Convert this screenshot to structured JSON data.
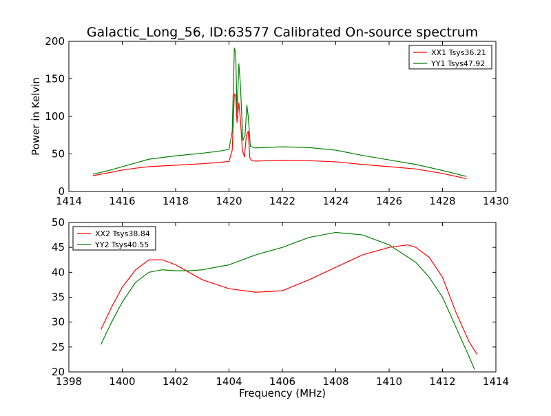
{
  "figure": {
    "title": "Galactic_Long_56, ID:63577 Calibrated On-source spectrum"
  },
  "chart_data": [
    {
      "type": "line",
      "xlabel": "",
      "ylabel": "Power in Kelvin",
      "xlim": [
        1414,
        1430
      ],
      "ylim": [
        0,
        200
      ],
      "xticks": [
        1414,
        1416,
        1418,
        1420,
        1422,
        1424,
        1426,
        1428,
        1430
      ],
      "yticks": [
        0,
        50,
        100,
        150,
        200
      ],
      "legend": "top-right",
      "series": [
        {
          "name": "XX1 Tsys36.21",
          "color": "#ff0000",
          "points": [
            [
              1414.9,
              21
            ],
            [
              1415.5,
              25
            ],
            [
              1416,
              28.5
            ],
            [
              1416.5,
              31
            ],
            [
              1417,
              33
            ],
            [
              1418,
              35
            ],
            [
              1419,
              37
            ],
            [
              1419.6,
              38.5
            ],
            [
              1420.0,
              40
            ],
            [
              1420.12,
              55
            ],
            [
              1420.2,
              130
            ],
            [
              1420.25,
              128
            ],
            [
              1420.3,
              92
            ],
            [
              1420.37,
              118
            ],
            [
              1420.43,
              95
            ],
            [
              1420.5,
              55
            ],
            [
              1420.58,
              46
            ],
            [
              1420.65,
              75
            ],
            [
              1420.72,
              80
            ],
            [
              1420.78,
              45
            ],
            [
              1420.85,
              41
            ],
            [
              1421,
              40.5
            ],
            [
              1422,
              41.5
            ],
            [
              1423,
              41
            ],
            [
              1424,
              39.5
            ],
            [
              1425,
              36
            ],
            [
              1426,
              33
            ],
            [
              1427,
              30
            ],
            [
              1428,
              24
            ],
            [
              1428.9,
              17
            ]
          ]
        },
        {
          "name": "YY1 Tsys47.92",
          "color": "#008000",
          "points": [
            [
              1414.9,
              23
            ],
            [
              1415.5,
              28
            ],
            [
              1416,
              33
            ],
            [
              1416.5,
              38
            ],
            [
              1417,
              43
            ],
            [
              1418,
              47.5
            ],
            [
              1419,
              51
            ],
            [
              1419.6,
              53.5
            ],
            [
              1420.0,
              56
            ],
            [
              1420.12,
              80
            ],
            [
              1420.2,
              191
            ],
            [
              1420.25,
              185
            ],
            [
              1420.3,
              105
            ],
            [
              1420.37,
              170
            ],
            [
              1420.43,
              140
            ],
            [
              1420.52,
              68
            ],
            [
              1420.6,
              75
            ],
            [
              1420.67,
              115
            ],
            [
              1420.72,
              100
            ],
            [
              1420.8,
              60
            ],
            [
              1421,
              58
            ],
            [
              1422,
              59.5
            ],
            [
              1423,
              58.5
            ],
            [
              1424,
              55
            ],
            [
              1425,
              48
            ],
            [
              1426,
              42
            ],
            [
              1427,
              36
            ],
            [
              1428,
              28
            ],
            [
              1428.9,
              20
            ]
          ]
        }
      ]
    },
    {
      "type": "line",
      "xlabel": "Frequency (MHz)",
      "ylabel": "",
      "xlim": [
        1398,
        1414
      ],
      "ylim": [
        20,
        50
      ],
      "xticks": [
        1398,
        1400,
        1402,
        1404,
        1406,
        1408,
        1410,
        1412,
        1414
      ],
      "yticks": [
        20,
        25,
        30,
        35,
        40,
        45,
        50
      ],
      "legend": "top-left",
      "series": [
        {
          "name": "XX2 Tsys38.84",
          "color": "#ff0000",
          "points": [
            [
              1399.2,
              28.5
            ],
            [
              1399.6,
              33
            ],
            [
              1400,
              37
            ],
            [
              1400.5,
              40.5
            ],
            [
              1401,
              42.5
            ],
            [
              1401.5,
              42.5
            ],
            [
              1402,
              41.5
            ],
            [
              1402.5,
              40
            ],
            [
              1403,
              38.5
            ],
            [
              1404,
              36.7
            ],
            [
              1405,
              36
            ],
            [
              1406,
              36.3
            ],
            [
              1407,
              38.5
            ],
            [
              1408,
              41
            ],
            [
              1409,
              43.5
            ],
            [
              1410,
              45
            ],
            [
              1410.7,
              45.5
            ],
            [
              1411,
              45
            ],
            [
              1411.5,
              43
            ],
            [
              1412,
              39
            ],
            [
              1412.5,
              32
            ],
            [
              1413,
              26
            ],
            [
              1413.3,
              23.5
            ]
          ]
        },
        {
          "name": "YY2 Tsys40.55",
          "color": "#008000",
          "points": [
            [
              1399.2,
              25.5
            ],
            [
              1399.6,
              30
            ],
            [
              1400,
              34
            ],
            [
              1400.5,
              38
            ],
            [
              1401,
              40
            ],
            [
              1401.5,
              40.5
            ],
            [
              1402,
              40.3
            ],
            [
              1402.5,
              40.3
            ],
            [
              1403,
              40.5
            ],
            [
              1404,
              41.5
            ],
            [
              1405,
              43.5
            ],
            [
              1406,
              45
            ],
            [
              1407,
              47
            ],
            [
              1408,
              48
            ],
            [
              1409,
              47.5
            ],
            [
              1410,
              45.5
            ],
            [
              1411,
              42
            ],
            [
              1411.5,
              39
            ],
            [
              1412,
              35
            ],
            [
              1412.5,
              29
            ],
            [
              1413,
              23
            ],
            [
              1413.2,
              20.5
            ]
          ]
        }
      ]
    }
  ]
}
